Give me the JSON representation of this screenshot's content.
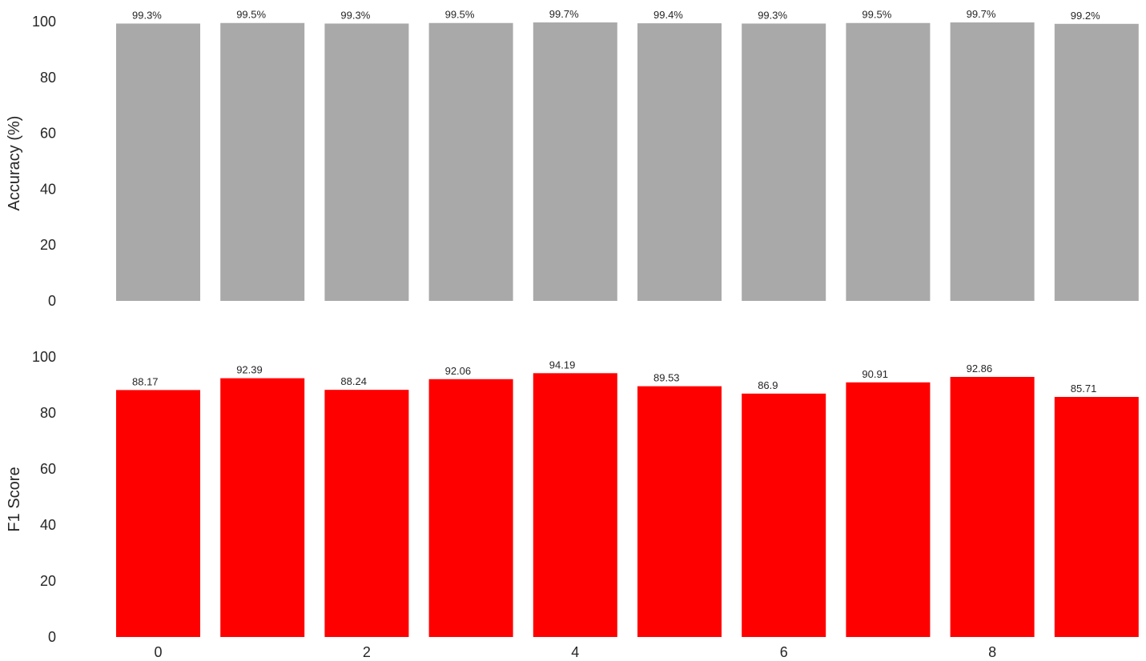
{
  "chart_data": [
    {
      "type": "bar",
      "categories": [
        0,
        1,
        2,
        3,
        4,
        5,
        6,
        7,
        8,
        9
      ],
      "values": [
        99.3,
        99.5,
        99.3,
        99.5,
        99.7,
        99.4,
        99.3,
        99.5,
        99.7,
        99.2
      ],
      "data_labels": [
        "99.3%",
        "99.5%",
        "99.3%",
        "99.5%",
        "99.7%",
        "99.4%",
        "99.3%",
        "99.5%",
        "99.7%",
        "99.2%"
      ],
      "ylabel": "Accuracy (%)",
      "ylim": [
        0,
        100
      ],
      "yticks": [
        "0",
        "20",
        "40",
        "60",
        "80",
        "100"
      ],
      "xticks": [],
      "color": "#a9a9a9",
      "grid": false
    },
    {
      "type": "bar",
      "categories": [
        0,
        1,
        2,
        3,
        4,
        5,
        6,
        7,
        8,
        9
      ],
      "values": [
        88.17,
        92.39,
        88.24,
        92.06,
        94.19,
        89.53,
        86.9,
        90.91,
        92.86,
        85.71
      ],
      "data_labels": [
        "88.17",
        "92.39",
        "88.24",
        "92.06",
        "94.19",
        "89.53",
        "86.9",
        "90.91",
        "92.86",
        "85.71"
      ],
      "ylabel": "F1 Score",
      "ylim": [
        0,
        100
      ],
      "yticks": [
        "0",
        "20",
        "40",
        "60",
        "80",
        "100"
      ],
      "xticks": [
        "0",
        "2",
        "4",
        "6",
        "8"
      ],
      "color": "#ff0000",
      "grid": false
    }
  ]
}
